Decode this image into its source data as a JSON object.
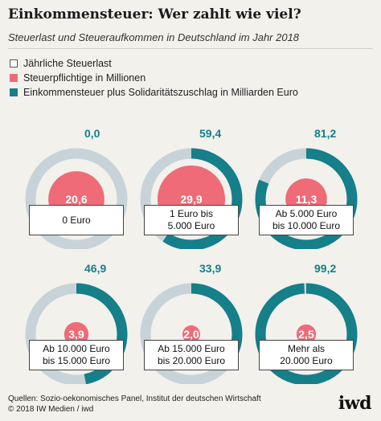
{
  "header": {
    "title": "Einkommensteuer: Wer zahlt wie viel?",
    "subtitle": "Steuerlast und Steueraufkommen in Deutschland im Jahr 2018"
  },
  "legend": [
    {
      "label": "Jährliche Steuerlast",
      "color": "#ffffff",
      "border": "#555555"
    },
    {
      "label": "Steuerpflichtige in Millionen",
      "color": "#ef6b77",
      "border": "#ef6b77"
    },
    {
      "label": "Einkommensteuer plus Solidaritätszuschlag in Milliarden Euro",
      "color": "#157f8a",
      "border": "#157f8a"
    }
  ],
  "colors": {
    "ring_track": "#c8d3d9",
    "ring_fill": "#157f8a",
    "circle": "#ef6b77",
    "background": "#f2f1ec"
  },
  "chart_data": {
    "type": "donut",
    "ring_max": 100,
    "circle_max": 29.9,
    "groups": [
      {
        "label": "0 Euro",
        "taxpayers_millions": 20.6,
        "tax_billion_euro": 0.0,
        "taxpayers_text": "20,6",
        "tax_text": "0,0"
      },
      {
        "label": "1 Euro bis\n5.000 Euro",
        "taxpayers_millions": 29.9,
        "tax_billion_euro": 59.4,
        "taxpayers_text": "29,9",
        "tax_text": "59,4"
      },
      {
        "label": "Ab 5.000 Euro\nbis 10.000 Euro",
        "taxpayers_millions": 11.3,
        "tax_billion_euro": 81.2,
        "taxpayers_text": "11,3",
        "tax_text": "81,2"
      },
      {
        "label": "Ab 10.000 Euro\nbis 15.000 Euro",
        "taxpayers_millions": 3.9,
        "tax_billion_euro": 46.9,
        "taxpayers_text": "3,9",
        "tax_text": "46,9"
      },
      {
        "label": "Ab 15.000 Euro\nbis 20.000 Euro",
        "taxpayers_millions": 2.0,
        "tax_billion_euro": 33.9,
        "taxpayers_text": "2,0",
        "tax_text": "33,9"
      },
      {
        "label": "Mehr als\n20.000 Euro",
        "taxpayers_millions": 2.5,
        "tax_billion_euro": 99.2,
        "taxpayers_text": "2,5",
        "tax_text": "99,2"
      }
    ]
  },
  "footer": {
    "source": "Quellen: Sozio-oekonomisches Panel, Institut der deutschen Wirtschaft",
    "copyright": "© 2018 IW Medien / iwd",
    "logo": "iwd"
  }
}
